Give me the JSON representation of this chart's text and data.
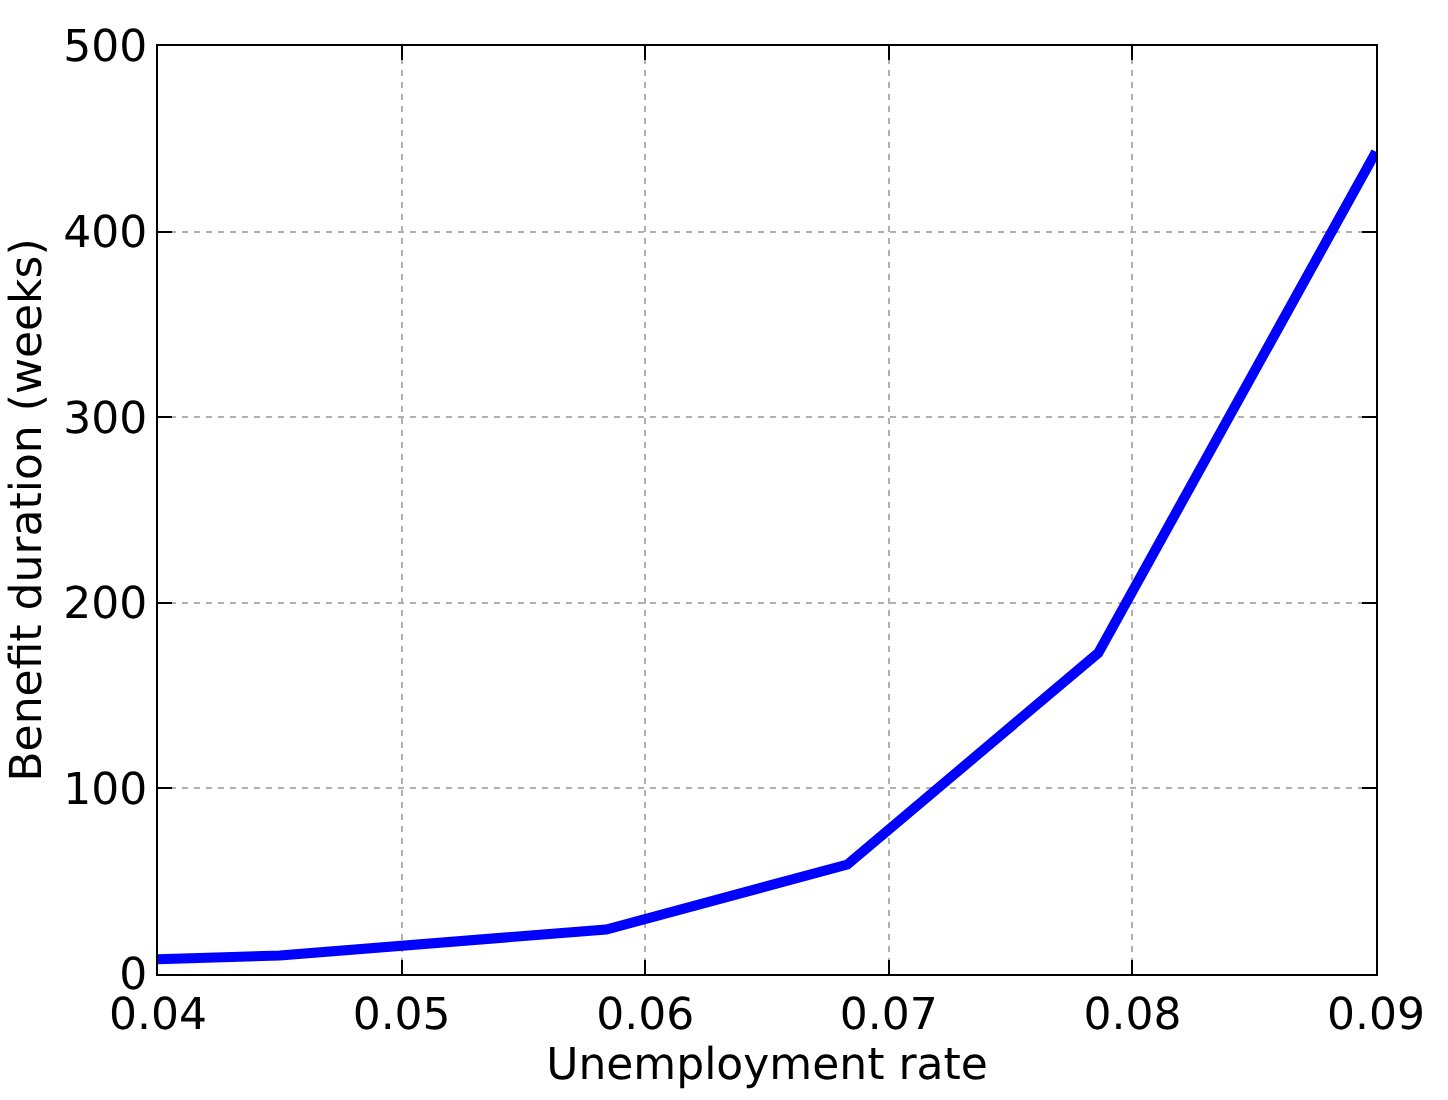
{
  "chart_data": {
    "type": "line",
    "xlabel": "Unemployment rate",
    "ylabel": "Benefit duration (weeks)",
    "x": [
      0.04,
      0.045,
      0.0584,
      0.0683,
      0.0786,
      0.09
    ],
    "series": [
      {
        "color": "#0000ff",
        "values": [
          8,
          10,
          24,
          59,
          173,
          443
        ]
      }
    ],
    "xlim": [
      0.04,
      0.09
    ],
    "xticks": [
      0.04,
      0.05,
      0.06,
      0.07,
      0.08,
      0.09
    ],
    "ylim": [
      0,
      500
    ],
    "yticks": [
      0,
      100,
      200,
      300,
      400,
      500
    ],
    "grid": true,
    "line_style": "solid"
  }
}
